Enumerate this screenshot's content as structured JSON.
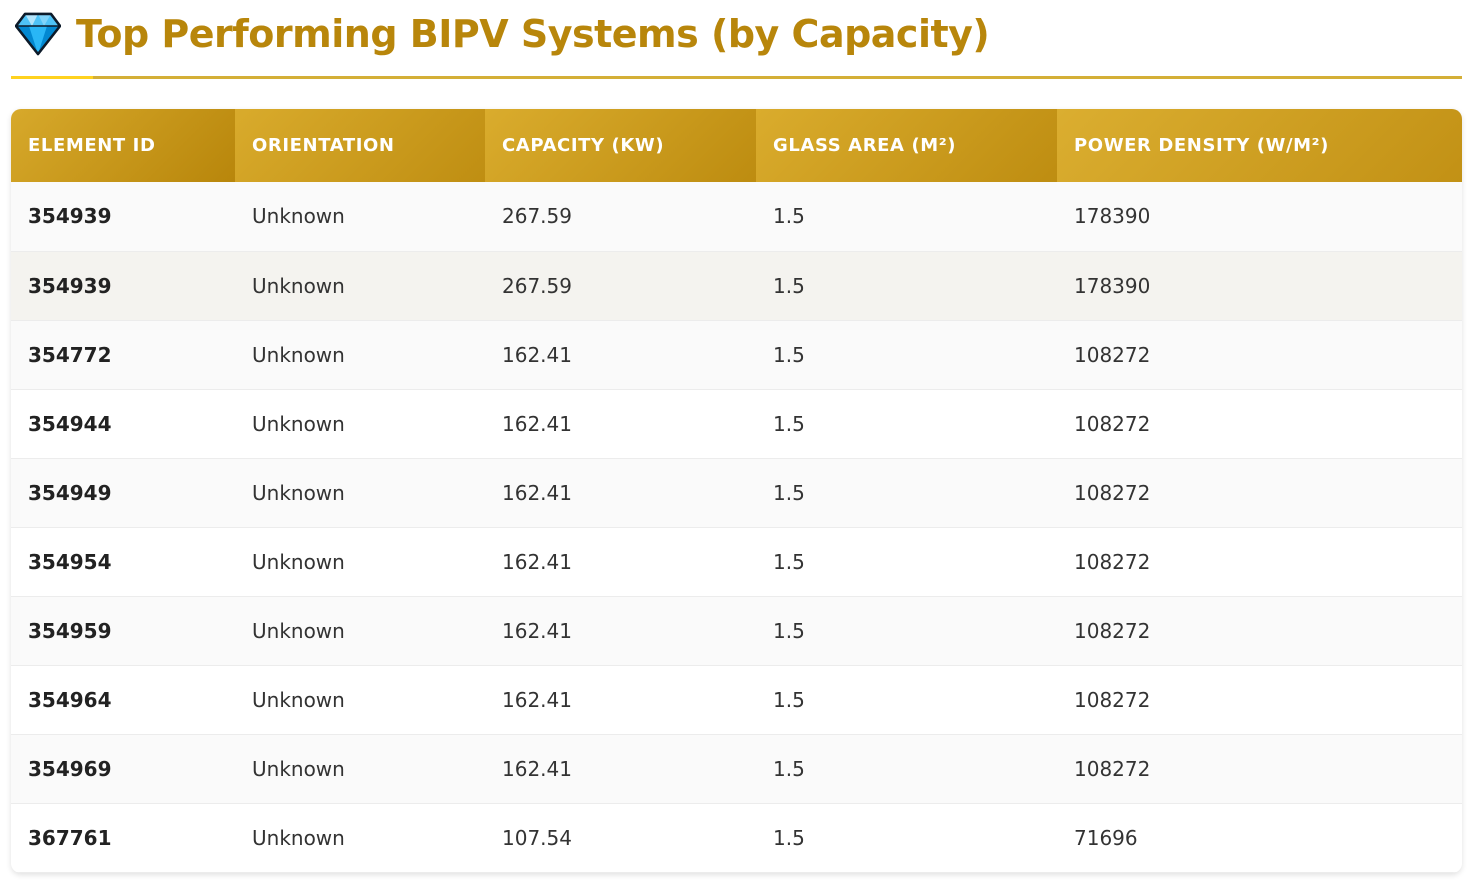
{
  "header": {
    "title": "Top Performing BIPV Systems (by Capacity)",
    "icon": "gem-icon"
  },
  "table": {
    "columns": [
      "ELEMENT ID",
      "ORIENTATION",
      "CAPACITY (KW)",
      "GLASS AREA (M²)",
      "POWER DENSITY (W/M²)"
    ],
    "rows": [
      {
        "element_id": "354939",
        "orientation": "Unknown",
        "capacity": "267.59",
        "glass_area": "1.5",
        "power_density": "178390"
      },
      {
        "element_id": "354939",
        "orientation": "Unknown",
        "capacity": "267.59",
        "glass_area": "1.5",
        "power_density": "178390"
      },
      {
        "element_id": "354772",
        "orientation": "Unknown",
        "capacity": "162.41",
        "glass_area": "1.5",
        "power_density": "108272"
      },
      {
        "element_id": "354944",
        "orientation": "Unknown",
        "capacity": "162.41",
        "glass_area": "1.5",
        "power_density": "108272"
      },
      {
        "element_id": "354949",
        "orientation": "Unknown",
        "capacity": "162.41",
        "glass_area": "1.5",
        "power_density": "108272"
      },
      {
        "element_id": "354954",
        "orientation": "Unknown",
        "capacity": "162.41",
        "glass_area": "1.5",
        "power_density": "108272"
      },
      {
        "element_id": "354959",
        "orientation": "Unknown",
        "capacity": "162.41",
        "glass_area": "1.5",
        "power_density": "108272"
      },
      {
        "element_id": "354964",
        "orientation": "Unknown",
        "capacity": "162.41",
        "glass_area": "1.5",
        "power_density": "108272"
      },
      {
        "element_id": "354969",
        "orientation": "Unknown",
        "capacity": "162.41",
        "glass_area": "1.5",
        "power_density": "108272"
      },
      {
        "element_id": "367761",
        "orientation": "Unknown",
        "capacity": "107.54",
        "glass_area": "1.5",
        "power_density": "71696"
      }
    ]
  },
  "colors": {
    "accent": "#B8860B",
    "header_gold": "#D4AF37",
    "rule_highlight": "#FFD21F",
    "gem_blue": "#29B6F6"
  }
}
